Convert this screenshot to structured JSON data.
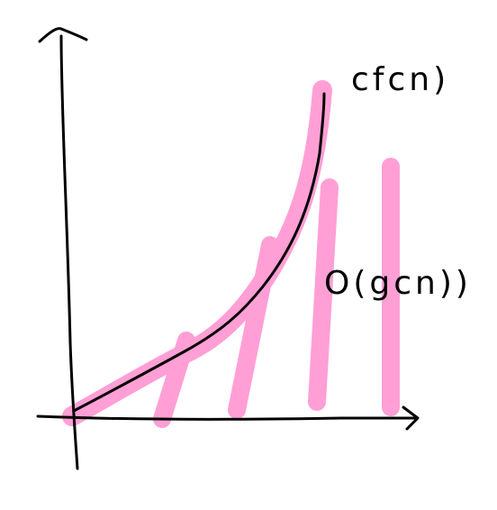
{
  "diagram": {
    "curve_label": "cfcn)",
    "region_label": "O(gcn))",
    "colors": {
      "ink": "#000000",
      "highlight": "#ff9fd6",
      "background": "#ffffff"
    }
  }
}
